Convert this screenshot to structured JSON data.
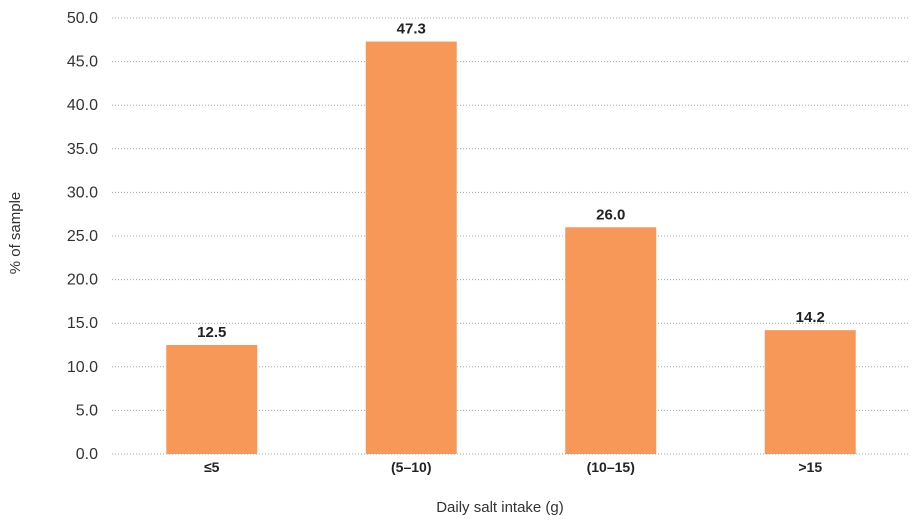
{
  "chart_data": {
    "type": "bar",
    "categories": [
      "≤5",
      "(5–10)",
      "(10–15)",
      ">15"
    ],
    "values": [
      12.5,
      47.3,
      26.0,
      14.2
    ],
    "data_labels": [
      "12.5",
      "47.3",
      "26.0",
      "14.2"
    ],
    "title": "",
    "xlabel": "Daily salt intake (g)",
    "ylabel": "% of sample",
    "ylim": [
      0,
      50
    ],
    "yticks": [
      0,
      5,
      10,
      15,
      20,
      25,
      30,
      35,
      40,
      45,
      50
    ],
    "ytick_labels": [
      "0.0",
      "5.0",
      "10.0",
      "15.0",
      "20.0",
      "25.0",
      "30.0",
      "35.0",
      "40.0",
      "45.0",
      "50.0"
    ],
    "grid": true,
    "legend": "none",
    "bar_color": "#f79858",
    "grid_color": "#8aa9c9"
  }
}
